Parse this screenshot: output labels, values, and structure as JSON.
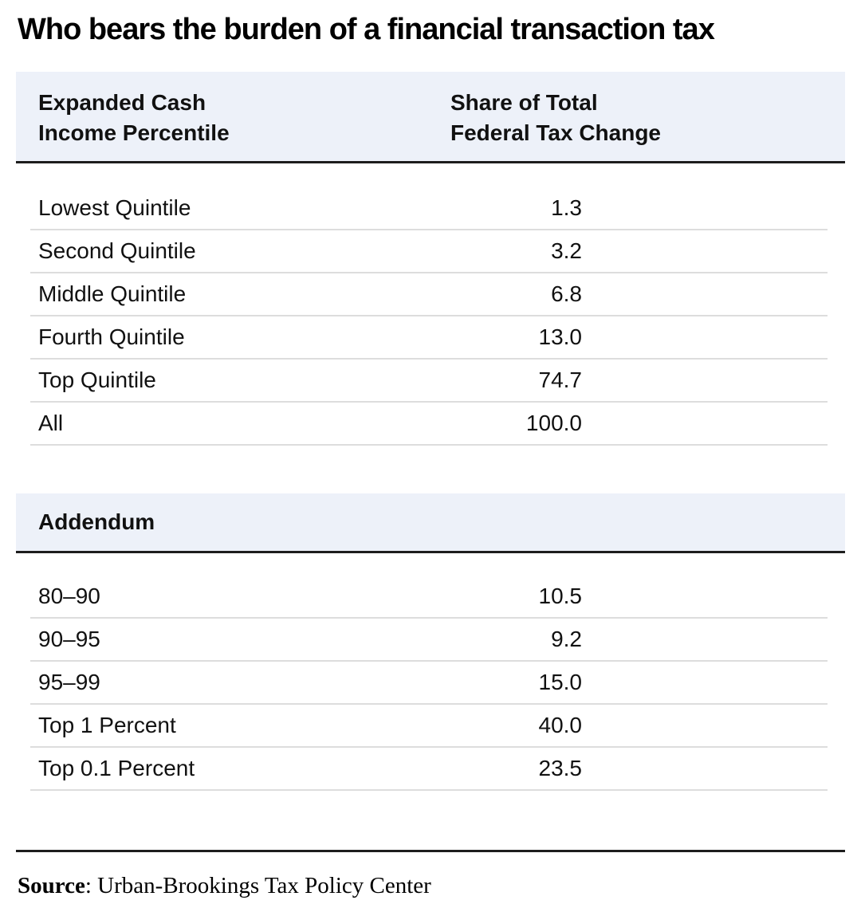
{
  "title": "Who bears the burden of a financial transaction tax",
  "table": {
    "header": {
      "col1_line1": "Expanded Cash",
      "col1_line2": "Income Percentile",
      "col2_line1": "Share of Total",
      "col2_line2": "Federal Tax Change"
    },
    "rows": [
      {
        "label": "Lowest Quintile",
        "value": "1.3"
      },
      {
        "label": "Second Quintile",
        "value": "3.2"
      },
      {
        "label": "Middle Quintile",
        "value": "6.8"
      },
      {
        "label": "Fourth Quintile",
        "value": "13.0"
      },
      {
        "label": "Top Quintile",
        "value": "74.7"
      },
      {
        "label": "All",
        "value": "100.0"
      }
    ]
  },
  "addendum": {
    "header": "Addendum",
    "rows": [
      {
        "label": "80–90",
        "value": "10.5"
      },
      {
        "label": "90–95",
        "value": "9.2"
      },
      {
        "label": "95–99",
        "value": "15.0"
      },
      {
        "label": "Top 1 Percent",
        "value": "40.0"
      },
      {
        "label": "Top 0.1 Percent",
        "value": "23.5"
      }
    ]
  },
  "source": {
    "label": "Source",
    "text": ": Urban-Brookings Tax Policy Center"
  },
  "colors": {
    "band_background": "#edf1f9",
    "heavy_rule": "#1d1d1d",
    "light_rule": "#dddddd",
    "text": "#111111"
  },
  "chart_data": {
    "type": "table",
    "title": "Who bears the burden of a financial transaction tax",
    "columns": [
      "Expanded Cash Income Percentile",
      "Share of Total Federal Tax Change"
    ],
    "rows": [
      [
        "Lowest Quintile",
        1.3
      ],
      [
        "Second Quintile",
        3.2
      ],
      [
        "Middle Quintile",
        6.8
      ],
      [
        "Fourth Quintile",
        13.0
      ],
      [
        "Top Quintile",
        74.7
      ],
      [
        "All",
        100.0
      ]
    ],
    "addendum_label": "Addendum",
    "addendum_rows": [
      [
        "80–90",
        10.5
      ],
      [
        "90–95",
        9.2
      ],
      [
        "95–99",
        15.0
      ],
      [
        "Top 1 Percent",
        40.0
      ],
      [
        "Top 0.1 Percent",
        23.5
      ]
    ],
    "source": "Urban-Brookings Tax Policy Center",
    "layout": {
      "grid": "horizontal light rules between rows",
      "value_alignment": "right / decimal-aligned"
    }
  }
}
